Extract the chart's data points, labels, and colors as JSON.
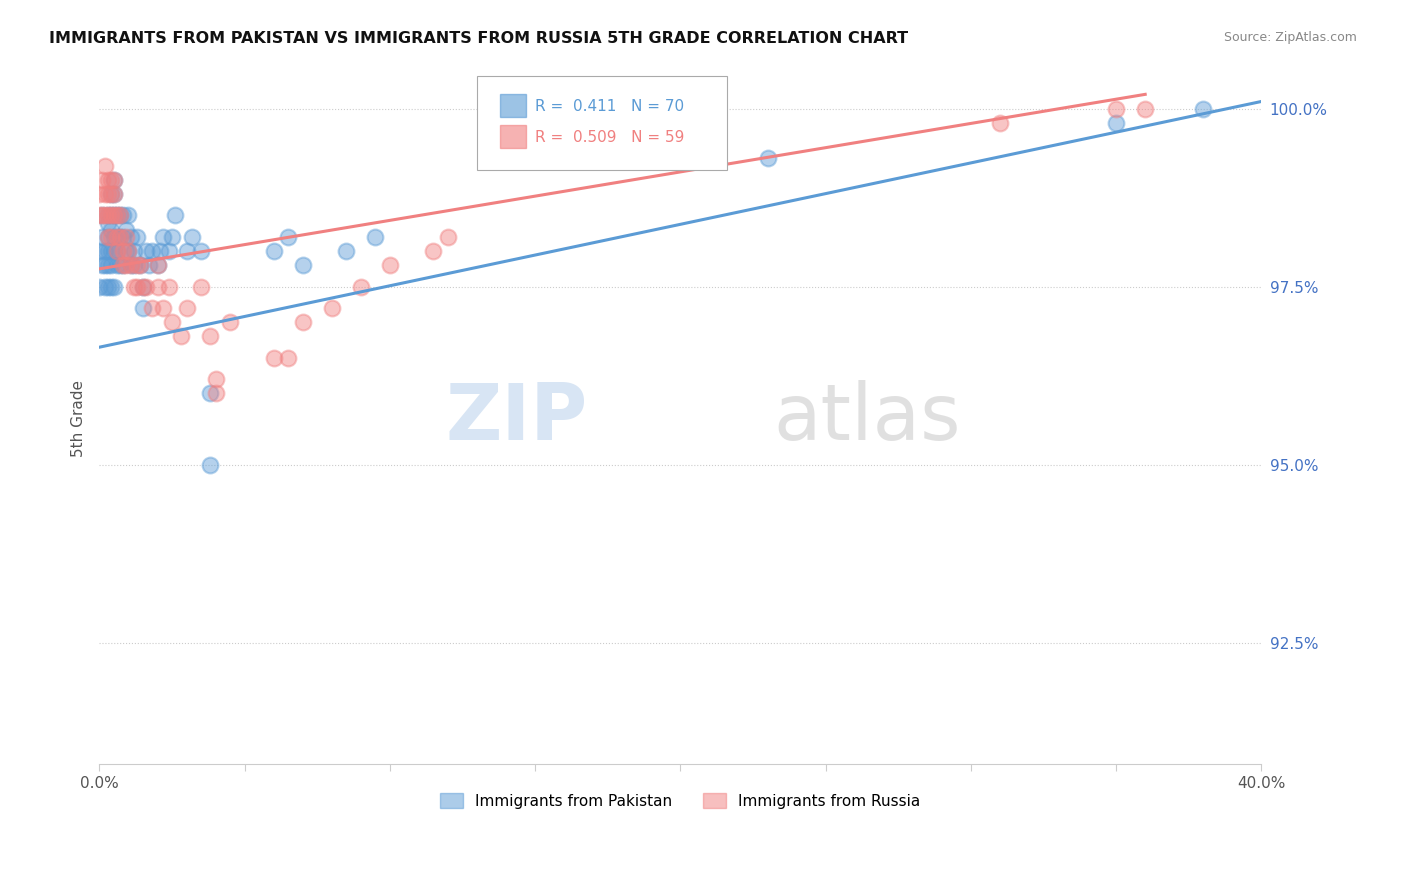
{
  "title": "IMMIGRANTS FROM PAKISTAN VS IMMIGRANTS FROM RUSSIA 5TH GRADE CORRELATION CHART",
  "source": "Source: ZipAtlas.com",
  "ylabel": "5th Grade",
  "r_pakistan": 0.411,
  "n_pakistan": 70,
  "r_russia": 0.509,
  "n_russia": 59,
  "legend_pakistan": "Immigrants from Pakistan",
  "legend_russia": "Immigrants from Russia",
  "blue_color": "#5B9BD5",
  "pink_color": "#F08080",
  "watermark_zip": "ZIP",
  "watermark_atlas": "atlas",
  "xlim": [
    0.0,
    0.4
  ],
  "ylim": [
    0.908,
    1.005
  ],
  "yticks": [
    0.925,
    0.95,
    0.975,
    1.0
  ],
  "ytick_labels": [
    "92.5%",
    "95.0%",
    "97.5%",
    "100.0%"
  ],
  "xtick_labels_show": [
    "0.0%",
    "40.0%"
  ],
  "pakistan_x": [
    0.0,
    0.0,
    0.001,
    0.001,
    0.001,
    0.002,
    0.002,
    0.002,
    0.003,
    0.003,
    0.003,
    0.003,
    0.003,
    0.003,
    0.004,
    0.004,
    0.004,
    0.004,
    0.004,
    0.004,
    0.005,
    0.005,
    0.005,
    0.005,
    0.005,
    0.005,
    0.006,
    0.006,
    0.006,
    0.006,
    0.007,
    0.007,
    0.007,
    0.008,
    0.008,
    0.008,
    0.009,
    0.009,
    0.01,
    0.01,
    0.011,
    0.011,
    0.012,
    0.012,
    0.013,
    0.014,
    0.015,
    0.015,
    0.016,
    0.017,
    0.018,
    0.02,
    0.021,
    0.022,
    0.024,
    0.025,
    0.026,
    0.03,
    0.032,
    0.035,
    0.038,
    0.038,
    0.06,
    0.065,
    0.07,
    0.085,
    0.095,
    0.23,
    0.35,
    0.38
  ],
  "pakistan_y": [
    0.98,
    0.975,
    0.985,
    0.982,
    0.978,
    0.98,
    0.978,
    0.975,
    0.985,
    0.984,
    0.982,
    0.98,
    0.978,
    0.975,
    0.988,
    0.985,
    0.983,
    0.98,
    0.978,
    0.975,
    0.99,
    0.988,
    0.985,
    0.982,
    0.98,
    0.975,
    0.985,
    0.982,
    0.98,
    0.978,
    0.985,
    0.982,
    0.978,
    0.985,
    0.982,
    0.978,
    0.983,
    0.98,
    0.985,
    0.98,
    0.982,
    0.978,
    0.98,
    0.978,
    0.982,
    0.978,
    0.975,
    0.972,
    0.98,
    0.978,
    0.98,
    0.978,
    0.98,
    0.982,
    0.98,
    0.982,
    0.985,
    0.98,
    0.982,
    0.98,
    0.96,
    0.95,
    0.98,
    0.982,
    0.978,
    0.98,
    0.982,
    0.993,
    0.998,
    1.0
  ],
  "russia_x": [
    0.0,
    0.0,
    0.001,
    0.001,
    0.002,
    0.002,
    0.002,
    0.003,
    0.003,
    0.003,
    0.003,
    0.004,
    0.004,
    0.004,
    0.004,
    0.005,
    0.005,
    0.005,
    0.006,
    0.006,
    0.006,
    0.007,
    0.007,
    0.008,
    0.008,
    0.009,
    0.009,
    0.01,
    0.011,
    0.012,
    0.013,
    0.013,
    0.014,
    0.015,
    0.016,
    0.018,
    0.02,
    0.02,
    0.022,
    0.024,
    0.025,
    0.028,
    0.03,
    0.035,
    0.038,
    0.04,
    0.04,
    0.045,
    0.06,
    0.065,
    0.07,
    0.08,
    0.09,
    0.1,
    0.115,
    0.12,
    0.31,
    0.35,
    0.36
  ],
  "russia_y": [
    0.988,
    0.985,
    0.99,
    0.985,
    0.992,
    0.988,
    0.985,
    0.99,
    0.988,
    0.985,
    0.982,
    0.99,
    0.988,
    0.985,
    0.982,
    0.99,
    0.988,
    0.985,
    0.985,
    0.982,
    0.98,
    0.985,
    0.982,
    0.98,
    0.978,
    0.982,
    0.978,
    0.98,
    0.978,
    0.975,
    0.978,
    0.975,
    0.978,
    0.975,
    0.975,
    0.972,
    0.978,
    0.975,
    0.972,
    0.975,
    0.97,
    0.968,
    0.972,
    0.975,
    0.968,
    0.96,
    0.962,
    0.97,
    0.965,
    0.965,
    0.97,
    0.972,
    0.975,
    0.978,
    0.98,
    0.982,
    0.998,
    1.0,
    1.0
  ],
  "trend_pak_x0": 0.0,
  "trend_pak_y0": 0.9665,
  "trend_pak_x1": 0.4,
  "trend_pak_y1": 1.001,
  "trend_rus_x0": 0.0,
  "trend_rus_y0": 0.9775,
  "trend_rus_x1": 0.36,
  "trend_rus_y1": 1.002
}
